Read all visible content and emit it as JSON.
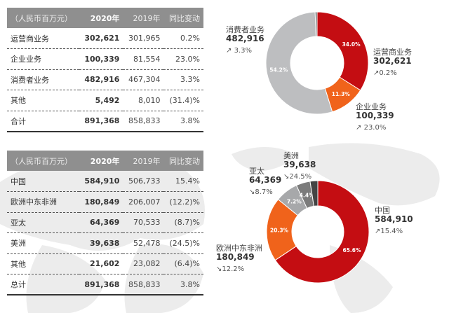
{
  "tables": [
    {
      "header": [
        "（人民币百万元）",
        "2020年",
        "2019年",
        "同比变动"
      ],
      "rows": [
        [
          "运营商业务",
          "302,621",
          "301,965",
          "0.2%"
        ],
        [
          "企业业务",
          "100,339",
          "81,554",
          "23.0%"
        ],
        [
          "消费者业务",
          "482,916",
          "467,304",
          "3.3%"
        ],
        [
          "其他",
          "5,492",
          "8,010",
          "(31.4)%"
        ],
        [
          "合计",
          "891,368",
          "858,833",
          "3.8%"
        ]
      ]
    },
    {
      "header": [
        "（人民币百万元）",
        "2020年",
        "2019年",
        "同比变动"
      ],
      "rows": [
        [
          "中国",
          "584,910",
          "506,733",
          "15.4%"
        ],
        [
          "欧洲中东非洲",
          "180,849",
          "206,007",
          "(12.2)%"
        ],
        [
          "亚太",
          "64,369",
          "70,533",
          "(8.7)%"
        ],
        [
          "美洲",
          "39,638",
          "52,478",
          "(24.5)%"
        ],
        [
          "其他",
          "21,602",
          "23,082",
          "(6.4)%"
        ],
        [
          "总计",
          "891,368",
          "858,833",
          "3.8%"
        ]
      ]
    }
  ],
  "chart_data": [
    {
      "type": "pie",
      "donut": true,
      "categories": [
        "运营商业务",
        "企业业务",
        "消费者业务",
        "其他"
      ],
      "values": [
        302621,
        100339,
        482916,
        5492
      ],
      "percent_labels": [
        "34.0%",
        "11.3%",
        "54.2%",
        ""
      ],
      "changes": [
        "0.2%",
        "23.0%",
        "3.3%",
        ""
      ],
      "directions": [
        "up",
        "up",
        "up",
        ""
      ],
      "colors": [
        "#c40d12",
        "#f0631b",
        "#bdbec0",
        "#6b6b6b"
      ]
    },
    {
      "type": "pie",
      "donut": true,
      "categories": [
        "中国",
        "欧洲中东非洲",
        "亚太",
        "美洲",
        "其他"
      ],
      "values": [
        584910,
        180849,
        64369,
        39638,
        21602
      ],
      "percent_labels": [
        "65.6%",
        "20.3%",
        "7.2%",
        "4.4%",
        ""
      ],
      "changes": [
        "15.4%",
        "12.2%",
        "8.7%",
        "24.5%",
        ""
      ],
      "directions": [
        "up",
        "down",
        "down",
        "down",
        ""
      ],
      "colors": [
        "#c40d12",
        "#f0631b",
        "#a7a8aa",
        "#7b7b7b",
        "#444444"
      ]
    }
  ]
}
